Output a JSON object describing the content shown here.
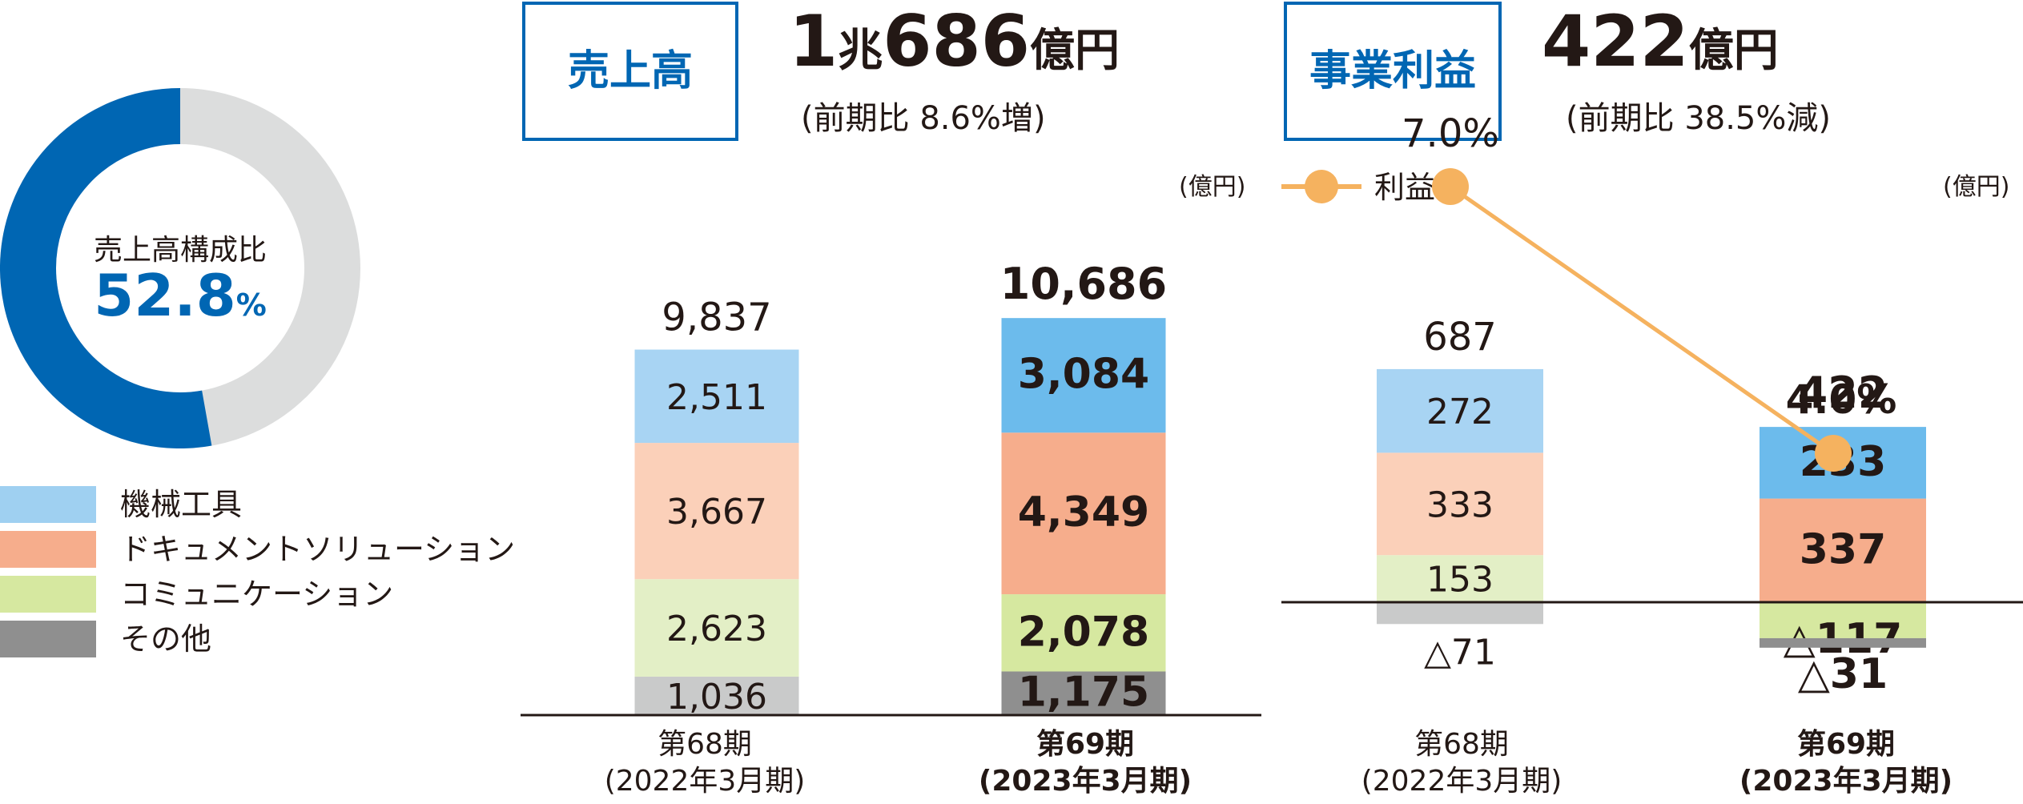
{
  "donut": {
    "title": "売上高構成比",
    "value": "52.8",
    "unit": "%",
    "share": 0.528,
    "colors": {
      "active": "#0066b3",
      "rest": "#dcdddd"
    }
  },
  "legend": [
    {
      "label": "機械工具",
      "color": "#9fd0f1"
    },
    {
      "label": "ドキュメントソリューション",
      "color": "#f6ad8c"
    },
    {
      "label": "コミュニケーション",
      "color": "#d6e8a0"
    },
    {
      "label": "その他",
      "color": "#8f8f8f"
    }
  ],
  "sales": {
    "box_title": "売上高",
    "headline_1": "1",
    "headline_unit1": "兆",
    "headline_2": "686",
    "headline_unit2": "億円",
    "subline": "(前期比 8.6%増)",
    "unit": "(億円)"
  },
  "profit": {
    "box_title": "事業利益",
    "headline_1": "422",
    "headline_unit": "億円",
    "subline": "(前期比 38.5%減)",
    "unit": "(億円)",
    "line_legend": "利益率"
  },
  "chart_data": [
    {
      "type": "bar",
      "stacked": true,
      "categories": [
        "第68期\n(2022年3月期)",
        "第69期\n(2023年3月期)"
      ],
      "series": [
        {
          "name": "その他",
          "values": [
            1036,
            1175
          ],
          "labels": [
            "1,036",
            "1,175"
          ],
          "color": "#c9caca",
          "color_current": "#8f8f8f"
        },
        {
          "name": "コミュニケーション",
          "values": [
            2623,
            2078
          ],
          "labels": [
            "2,623",
            "2,078"
          ],
          "color": "#e3efc6",
          "color_current": "#d6e8a0"
        },
        {
          "name": "ドキュメントソリューション",
          "values": [
            3667,
            4349
          ],
          "labels": [
            "3,667",
            "4,349"
          ],
          "color": "#fbd0b9",
          "color_current": "#f6ad8c"
        },
        {
          "name": "機械工具",
          "values": [
            2511,
            3084
          ],
          "labels": [
            "2,511",
            "3,084"
          ],
          "color": "#a8d4f3",
          "color_current": "#6cbbec"
        }
      ],
      "totals": [
        "9,837",
        "10,686"
      ],
      "ylabel": "(億円)"
    },
    {
      "type": "bar",
      "stacked": true,
      "categories": [
        "第68期\n(2022年3月期)",
        "第69期\n(2023年3月期)"
      ],
      "series": [
        {
          "name": "コミュニケーション",
          "values": [
            153,
            -117
          ],
          "labels": [
            "153",
            "△117"
          ],
          "color": "#e3efc6",
          "color_current": "#d6e8a0"
        },
        {
          "name": "ドキュメントソリューション",
          "values": [
            333,
            337
          ],
          "labels": [
            "333",
            "337"
          ],
          "color": "#fbd0b9",
          "color_current": "#f6ad8c"
        },
        {
          "name": "機械工具",
          "values": [
            272,
            233
          ],
          "labels": [
            "272",
            "233"
          ],
          "color": "#a8d4f3",
          "color_current": "#6cbbec"
        },
        {
          "name": "その他",
          "values": [
            -71,
            -31
          ],
          "labels": [
            "△71",
            "△31"
          ],
          "color": "#c9caca",
          "color_current": "#8f8f8f"
        }
      ],
      "totals": [
        "687",
        "422"
      ],
      "line": {
        "name": "利益率",
        "values": [
          7.0,
          4.0
        ],
        "labels": [
          "7.0%",
          "4.0%"
        ],
        "color": "#f5b25f"
      },
      "ylabel": "(億円)"
    }
  ]
}
